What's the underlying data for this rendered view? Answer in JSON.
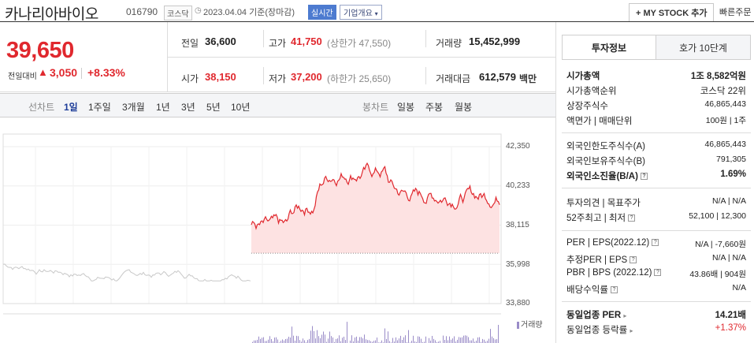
{
  "header": {
    "name": "카나리아바이오",
    "code": "016790",
    "market": "코스닥",
    "date_text": "2023.04.04 기준(장마감)",
    "realtime": "실시간",
    "company_menu": "기업개요",
    "my_stock_button": "+ MY STOCK 추가",
    "quick_order": "빠른주문"
  },
  "price": {
    "current": "39,650",
    "change_label": "전일대비",
    "change_value": "3,050",
    "change_pct": "+8.33%"
  },
  "stats": {
    "prev_label": "전일",
    "prev_value": "36,600",
    "high_label": "고가",
    "high_value": "41,750",
    "upper_limit": "(상한가 47,550)",
    "volume_label": "거래량",
    "volume_value": "15,452,999",
    "open_label": "시가",
    "open_value": "38,150",
    "low_label": "저가",
    "low_value": "37,200",
    "lower_limit": "(하한가 25,650)",
    "amount_label": "거래대금",
    "amount_value": "612,579",
    "amount_unit": "백만"
  },
  "chart_tabs": {
    "line_label": "선차트",
    "line_items": [
      "1일",
      "1주일",
      "3개월",
      "1년",
      "3년",
      "5년",
      "10년"
    ],
    "candle_label": "봉차트",
    "candle_items": [
      "일봉",
      "주봉",
      "월봉"
    ]
  },
  "chart_data": {
    "type": "line",
    "y_ticks": [
      "42,350",
      "40,233",
      "38,115",
      "35,998",
      "33,880"
    ],
    "ylim": [
      33880,
      42350
    ],
    "prev_close": 36600,
    "volume_label": "거래량",
    "colors": {
      "today": "#e0282e",
      "prev": "#c8c8c8",
      "volume": "#9a8cc8"
    }
  },
  "side": {
    "tab_invest": "투자정보",
    "tab_quote": "호가 10단계",
    "rows1": [
      {
        "k": "시가총액",
        "v": "1조 8,582억원"
      },
      {
        "k": "시가총액순위",
        "v": "코스닥 22위"
      },
      {
        "k": "상장주식수",
        "v": "46,865,443"
      },
      {
        "k": "액면가 | 매매단위",
        "v": "100원 | 1주"
      }
    ],
    "rows2": [
      {
        "k": "외국인한도주식수(A)",
        "v": "46,865,443"
      },
      {
        "k": "외국인보유주식수(B)",
        "v": "791,305"
      },
      {
        "k": "외국인소진율(B/A)",
        "v": "1.69%"
      }
    ],
    "rows3": [
      {
        "k": "투자의견 | 목표주가",
        "v": "N/A | N/A"
      },
      {
        "k": "52주최고 | 최저",
        "v": "52,100 | 12,300"
      }
    ],
    "rows4": [
      {
        "k": "PER | EPS(2022.12)",
        "v": "N/A | -7,660원"
      },
      {
        "k": "추정PER | EPS",
        "v": "N/A | N/A"
      },
      {
        "k": "PBR | BPS (2022.12)",
        "v": "43.86배 | 904원"
      },
      {
        "k": "배당수익률",
        "v": "N/A"
      }
    ],
    "rows5": [
      {
        "k": "동일업종 PER",
        "v": "14.21배"
      },
      {
        "k": "동일업종 등락률",
        "v": "+1.37%"
      }
    ]
  }
}
